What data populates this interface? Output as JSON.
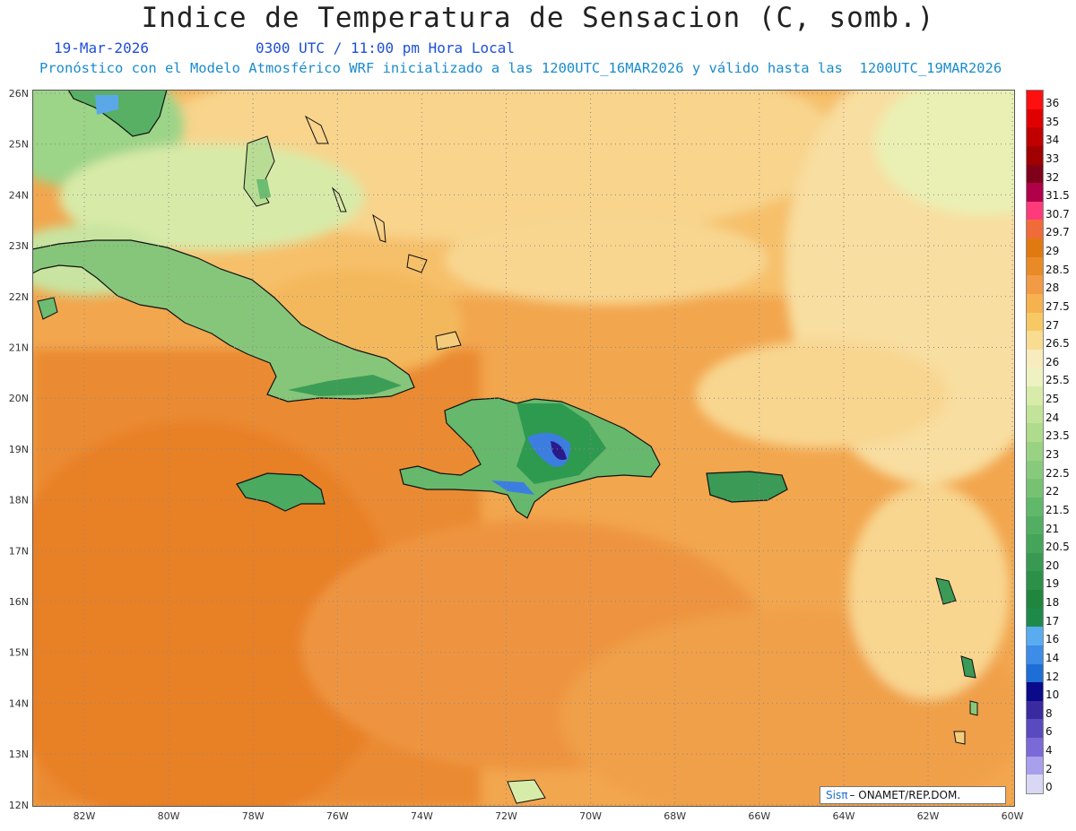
{
  "title": "Indice de Temperatura de Sensacion (C, somb.)",
  "date": "19-Mar-2026",
  "time": "0300 UTC / 11:00 pm Hora Local",
  "model_line": "Pronóstico con el Modelo Atmosférico WRF inicializado a las 1200UTC_16MAR2026 y válido hasta las  1200UTC_19MAR2026",
  "credit": {
    "brand": "Sisπ",
    "text": "– ONAMET/REP.DOM."
  },
  "map": {
    "lat_labels": [
      "26N",
      "25N",
      "24N",
      "23N",
      "22N",
      "21N",
      "20N",
      "19N",
      "18N",
      "17N",
      "16N",
      "15N",
      "14N",
      "13N",
      "12N"
    ],
    "lon_labels": [
      "82W",
      "80W",
      "78W",
      "76W",
      "74W",
      "72W",
      "70W",
      "68W",
      "66W",
      "64W",
      "62W",
      "60W"
    ]
  },
  "legend": {
    "levels": [
      "36",
      "35",
      "34",
      "33",
      "32",
      "31.5",
      "30.7",
      "29.7",
      "29",
      "28.5",
      "28",
      "27.5",
      "27",
      "26.5",
      "26",
      "25.5",
      "25",
      "24",
      "23.5",
      "23",
      "22.5",
      "22",
      "21.5",
      "21",
      "20.5",
      "20",
      "19",
      "18",
      "17",
      "16",
      "14",
      "12",
      "10",
      "8",
      "6",
      "4",
      "2",
      "0"
    ],
    "colors": [
      "#ff1010",
      "#e00000",
      "#c00000",
      "#a00000",
      "#80001a",
      "#b0004a",
      "#ff3a7a",
      "#f06a3a",
      "#e07a10",
      "#ea8a26",
      "#f29a44",
      "#f6b24e",
      "#f8c864",
      "#f8dc90",
      "#f8ecbe",
      "#eef2c2",
      "#d8ecaa",
      "#c2e49a",
      "#aedc8c",
      "#9ad284",
      "#88ca7c",
      "#76c272",
      "#62b86a",
      "#52ae62",
      "#44a45a",
      "#389a52",
      "#2c9048",
      "#20863e",
      "#1e8a4a",
      "#5aacf0",
      "#3c8ce8",
      "#1e6ed8",
      "#0a0a8a",
      "#3a2aa0",
      "#5a4ac0",
      "#7a6ad8",
      "#a8a0ec",
      "#d8d8f4"
    ]
  }
}
